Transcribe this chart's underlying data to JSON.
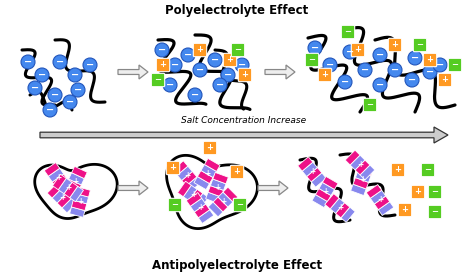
{
  "title_top": "Polyelectrolyte Effect",
  "title_bottom": "Antipolyelectrolyte Effect",
  "salt_label": "Salt Concentration Increase",
  "bg_color": "#ffffff",
  "blue_color": "#4488ee",
  "blue_edge": "#2255bb",
  "orange_color": "#ff9922",
  "green_color": "#55cc22",
  "pink_color": "#ee1188",
  "lavender_color": "#8888ee",
  "chain_color": "#111111",
  "arrow_face": "#dddddd",
  "arrow_edge": "#666666",
  "salt_arrow_face": "#cccccc",
  "salt_arrow_edge": "#333333"
}
